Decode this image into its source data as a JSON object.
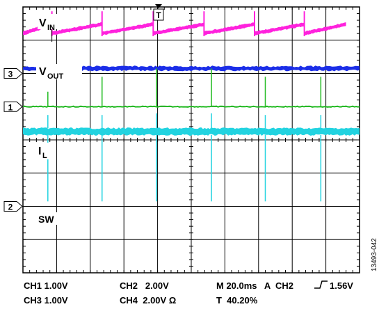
{
  "chart_data": {
    "type": "line",
    "title": "",
    "grid": true,
    "x_divisions": 10,
    "y_divisions": 8,
    "trigger_marker": "T",
    "colors": {
      "ch1": "#22bb22",
      "ch2": "#22d3e0",
      "ch3": "#ff22dd",
      "ch4": "#1b2ee8",
      "grid": "#000000",
      "background": "#ffffff"
    },
    "channel_markers": [
      {
        "label": "3",
        "division": 2.0
      },
      {
        "label": "1",
        "division": 3.0
      },
      {
        "label": "2",
        "division": 6.0
      }
    ],
    "trace_labels": {
      "vin_main": "V",
      "vin_sub": "IN",
      "vout_main": "V",
      "vout_sub": "OUT",
      "il_main": "I",
      "il_sub": "L",
      "sw": "SW"
    },
    "series": [
      {
        "name": "V_IN",
        "channel": "CH3",
        "band_div": [
          0.58,
          0.78
        ],
        "sawtooth_ramp_div": 0.32,
        "events_div": [
          0.0,
          0.86,
          2.35,
          3.87,
          5.38,
          6.88,
          8.36,
          9.6
        ]
      },
      {
        "name": "V_OUT",
        "channel": "CH4",
        "level_div": 1.85,
        "thickness_div": 0.12
      },
      {
        "name": "I_L",
        "channel": "CH1",
        "level_div": 3.0,
        "spikes_div": [
          0.74,
          2.35,
          3.97,
          5.6,
          7.2,
          8.85
        ],
        "spike_height_div": [
          0.45,
          0.9,
          1.15,
          1.15,
          0.9,
          0.9
        ]
      },
      {
        "name": "SW",
        "channel": "CH2",
        "level_div": 3.75,
        "thickness_div": 0.2,
        "spikes_div": [
          0.74,
          2.35,
          3.97,
          5.6,
          7.2,
          8.85
        ],
        "spike_up_div": [
          0.4,
          0.4,
          0.45,
          0.45,
          0.4,
          0.4
        ],
        "spike_down_div": [
          2.0,
          2.0,
          2.0,
          2.0,
          2.0,
          2.0
        ]
      }
    ]
  },
  "footer": {
    "ch1": "CH1 1.00V",
    "ch2": "CH2   2.00V",
    "ch3": "CH3 1.00V",
    "ch4": "CH4  2.00V Ω",
    "timebase": "M 20.0ms   A  CH2",
    "trigger_level": "1.56V",
    "trigger_pos": "T  40.20%"
  },
  "figure_id": "13493-042"
}
